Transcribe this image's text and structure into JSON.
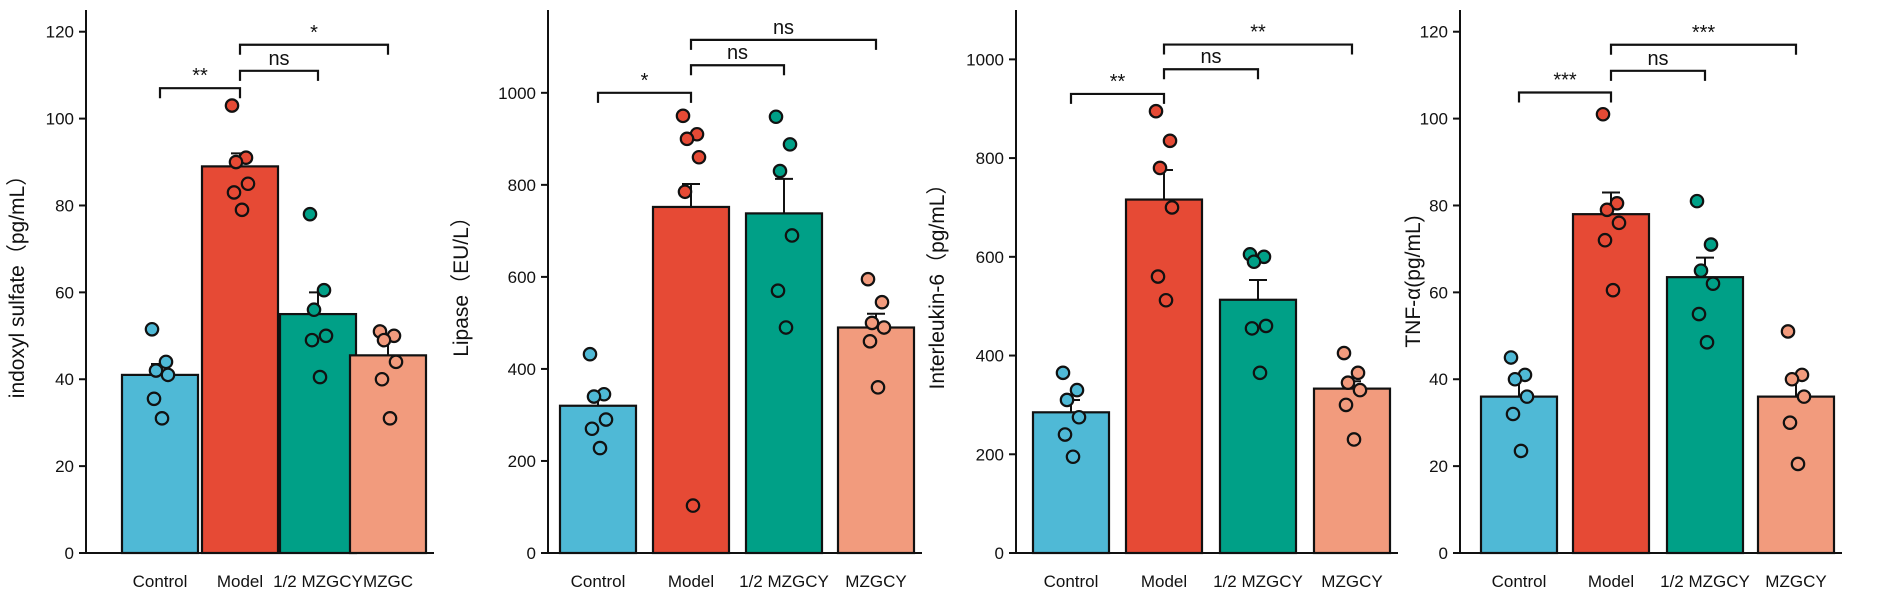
{
  "colors": {
    "control": "#4fb9d6",
    "model": "#e64a35",
    "half": "#00a087",
    "mzgcy": "#f29b7d"
  },
  "chart_data": [
    {
      "type": "bar",
      "ylabel": "indoxyl sulfate（pg/mL）",
      "categories": [
        "Control",
        "Model",
        "1/2 MZGCY",
        "MZGC"
      ],
      "values": [
        41,
        89,
        55,
        45.5
      ],
      "errors": [
        2.5,
        3,
        5,
        4
      ],
      "points": [
        [
          51.5,
          44,
          42,
          41,
          35.5,
          31
        ],
        [
          103,
          91,
          90,
          85,
          83,
          79
        ],
        [
          78,
          60.5,
          56,
          50,
          49,
          40.5
        ],
        [
          51,
          50,
          49,
          44,
          40,
          31
        ]
      ],
      "ylim": [
        0,
        125
      ],
      "yticks": [
        0,
        20,
        40,
        60,
        80,
        100,
        120
      ],
      "comparisons": [
        {
          "from": 0,
          "to": 1,
          "y": 107,
          "label": "**"
        },
        {
          "from": 1,
          "to": 2,
          "y": 111,
          "label": "ns"
        },
        {
          "from": 1,
          "to": 3,
          "y": 117,
          "label": "*"
        }
      ]
    },
    {
      "type": "bar",
      "ylabel": "Lipase（EU/L）",
      "categories": [
        "Control",
        "Model",
        "1/2 MZGCY",
        "MZGCY"
      ],
      "values": [
        320,
        752,
        738,
        490
      ],
      "errors": [
        22,
        50,
        75,
        30
      ],
      "points": [
        [
          432,
          345,
          340,
          290,
          270,
          228
        ],
        [
          950,
          910,
          900,
          860,
          785,
          103
        ],
        [
          948,
          888,
          830,
          690,
          570,
          490
        ],
        [
          595,
          545,
          500,
          490,
          460,
          360
        ]
      ],
      "ylim": [
        0,
        1180
      ],
      "yticks": [
        0,
        200,
        400,
        600,
        800,
        1000
      ],
      "comparisons": [
        {
          "from": 0,
          "to": 1,
          "y": 1000,
          "label": "*"
        },
        {
          "from": 1,
          "to": 2,
          "y": 1060,
          "label": "ns"
        },
        {
          "from": 1,
          "to": 3,
          "y": 1115,
          "label": "ns"
        }
      ]
    },
    {
      "type": "bar",
      "ylabel": "Interleukin-6（pg/mL）",
      "categories": [
        "Control",
        "Model",
        "1/2 MZGCY",
        "MZGCY"
      ],
      "values": [
        285,
        716,
        513,
        333
      ],
      "errors": [
        25,
        60,
        40,
        15
      ],
      "points": [
        [
          365,
          330,
          310,
          275,
          240,
          195
        ],
        [
          895,
          835,
          780,
          700,
          560,
          512
        ],
        [
          605,
          600,
          590,
          460,
          455,
          365
        ],
        [
          405,
          365,
          345,
          330,
          300,
          230
        ]
      ],
      "ylim": [
        0,
        1100
      ],
      "yticks": [
        0,
        200,
        400,
        600,
        800,
        1000
      ],
      "comparisons": [
        {
          "from": 0,
          "to": 1,
          "y": 930,
          "label": "**"
        },
        {
          "from": 1,
          "to": 2,
          "y": 980,
          "label": "ns"
        },
        {
          "from": 1,
          "to": 3,
          "y": 1030,
          "label": "**"
        }
      ]
    },
    {
      "type": "bar",
      "ylabel": "TNF-α(pg/mL)",
      "categories": [
        "Control",
        "Model",
        "1/2 MZGCY",
        "MZGCY"
      ],
      "values": [
        36,
        78,
        63.5,
        36
      ],
      "errors": [
        4,
        5,
        4.5,
        4
      ],
      "points": [
        [
          45,
          41,
          40,
          36,
          32,
          23.5
        ],
        [
          101,
          80.5,
          79,
          76,
          72,
          60.5
        ],
        [
          81,
          71,
          65,
          62,
          55,
          48.5
        ],
        [
          51,
          41,
          40,
          36,
          30,
          20.5
        ]
      ],
      "ylim": [
        0,
        125
      ],
      "yticks": [
        0,
        20,
        40,
        60,
        80,
        100,
        120
      ],
      "comparisons": [
        {
          "from": 0,
          "to": 1,
          "y": 106,
          "label": "***"
        },
        {
          "from": 1,
          "to": 2,
          "y": 111,
          "label": "ns"
        },
        {
          "from": 1,
          "to": 3,
          "y": 117,
          "label": "***"
        }
      ]
    }
  ]
}
